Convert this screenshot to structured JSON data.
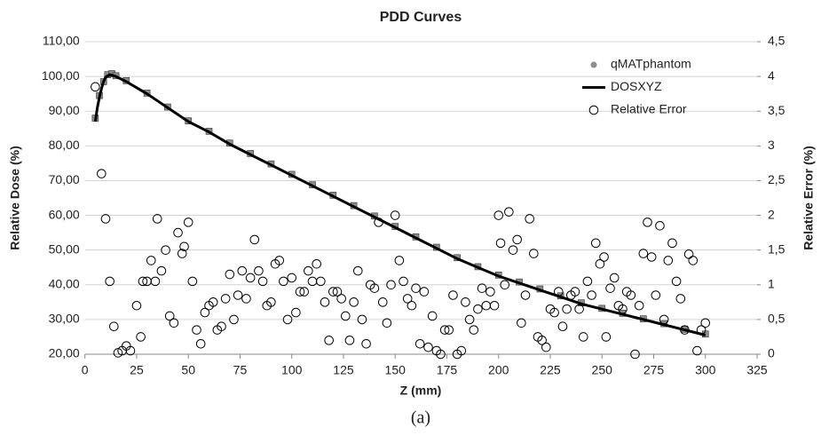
{
  "chart_data": {
    "type": "scatter",
    "title": "PDD Curves",
    "xlabel": "Z (mm)",
    "ylabel": "Relative Dose (%)",
    "y2label": "Relative Error (%)",
    "caption": "(a)",
    "xlim": [
      0,
      325
    ],
    "xticks": [
      0,
      25,
      50,
      75,
      100,
      125,
      150,
      175,
      200,
      225,
      250,
      275,
      300,
      325
    ],
    "ylim": [
      20,
      110
    ],
    "yticks": [
      {
        "value": 20,
        "label": "20,00"
      },
      {
        "value": 30,
        "label": "30,00"
      },
      {
        "value": 40,
        "label": "40,00"
      },
      {
        "value": 50,
        "label": "50,00"
      },
      {
        "value": 60,
        "label": "60,00"
      },
      {
        "value": 70,
        "label": "70,00"
      },
      {
        "value": 80,
        "label": "80,00"
      },
      {
        "value": 90,
        "label": "90,00"
      },
      {
        "value": 100,
        "label": "100,00"
      },
      {
        "value": 110,
        "label": "110,00"
      }
    ],
    "y2lim": [
      0,
      4.5
    ],
    "y2ticks": [
      0,
      {
        "value": 0.5,
        "label": "0,5"
      },
      1,
      {
        "value": 1.5,
        "label": "1,5"
      },
      2,
      {
        "value": 2.5,
        "label": "2,5"
      },
      3,
      {
        "value": 3.5,
        "label": "3,5"
      },
      4,
      {
        "value": 4.5,
        "label": "4,5"
      }
    ],
    "grid": true,
    "legend": "upper right",
    "series": [
      {
        "name": "qMATphantom",
        "type": "scatter",
        "marker": "square",
        "color": "#8c8c8c",
        "x": [
          5,
          7,
          9,
          11,
          13,
          15,
          20,
          30,
          40,
          50,
          60,
          70,
          80,
          90,
          100,
          110,
          120,
          130,
          140,
          150,
          160,
          170,
          180,
          190,
          200,
          210,
          220,
          230,
          240,
          250,
          260,
          270,
          280,
          290,
          300
        ],
        "values": [
          88,
          94.5,
          98.5,
          100.5,
          100.8,
          100.2,
          98.8,
          95.2,
          91.2,
          87.2,
          84.2,
          80.8,
          77.8,
          74.8,
          71.8,
          68.8,
          65.8,
          62.8,
          59.8,
          56.8,
          53.8,
          50.8,
          47.8,
          45.2,
          42.8,
          40.8,
          38.8,
          36.8,
          34.8,
          33.2,
          31.8,
          30.2,
          28.8,
          27.2,
          25.8
        ]
      },
      {
        "name": "DOSXYZ",
        "type": "line",
        "color": "#000000",
        "x": [
          5,
          6,
          7,
          8,
          9,
          10,
          12,
          15,
          20,
          30,
          40,
          50,
          60,
          70,
          80,
          90,
          100,
          110,
          120,
          130,
          140,
          150,
          160,
          170,
          180,
          190,
          200,
          210,
          220,
          230,
          240,
          250,
          260,
          270,
          280,
          290,
          300
        ],
        "values": [
          87,
          91,
          94,
          96.5,
          98.5,
          99.8,
          100.5,
          100,
          98.5,
          95,
          91,
          87,
          84,
          80.5,
          77.5,
          74.5,
          71.5,
          68.5,
          65.5,
          62.5,
          59.5,
          56.5,
          53.5,
          50.5,
          47.5,
          45,
          42.5,
          40.5,
          38.5,
          36.5,
          34.5,
          33,
          31.5,
          30,
          28.5,
          27,
          25.5
        ]
      },
      {
        "name": "Relative Error",
        "type": "scatter",
        "marker": "open-circle",
        "color": "#000000",
        "axis": "y2",
        "x": [
          5,
          8,
          10,
          12,
          14,
          16,
          18,
          20,
          22,
          25,
          27,
          28,
          30,
          32,
          34,
          35,
          37,
          39,
          41,
          43,
          45,
          47,
          48,
          50,
          52,
          54,
          56,
          58,
          60,
          62,
          64,
          66,
          68,
          70,
          72,
          74,
          76,
          78,
          80,
          82,
          84,
          86,
          88,
          90,
          92,
          94,
          96,
          98,
          100,
          102,
          104,
          106,
          108,
          110,
          112,
          114,
          116,
          118,
          120,
          122,
          124,
          126,
          128,
          130,
          132,
          134,
          136,
          138,
          140,
          142,
          144,
          146,
          148,
          150,
          152,
          154,
          156,
          158,
          160,
          162,
          164,
          166,
          168,
          170,
          172,
          174,
          176,
          178,
          180,
          182,
          184,
          186,
          188,
          190,
          192,
          194,
          196,
          198,
          200,
          201,
          203,
          205,
          207,
          209,
          211,
          213,
          215,
          217,
          219,
          221,
          223,
          225,
          227,
          229,
          231,
          233,
          235,
          237,
          239,
          241,
          243,
          245,
          247,
          249,
          251,
          252,
          254,
          256,
          258,
          260,
          262,
          264,
          266,
          268,
          270,
          272,
          274,
          276,
          278,
          280,
          282,
          284,
          286,
          288,
          290,
          292,
          294,
          296,
          298,
          300
        ],
        "values": [
          3.85,
          2.6,
          1.95,
          1.05,
          0.4,
          0.02,
          0.05,
          0.12,
          0.05,
          0.7,
          0.25,
          1.05,
          1.05,
          1.35,
          1.05,
          1.95,
          1.2,
          1.5,
          0.55,
          0.45,
          1.75,
          1.45,
          1.55,
          1.9,
          1.05,
          0.35,
          0.15,
          0.6,
          0.7,
          0.75,
          0.35,
          0.4,
          0.8,
          1.15,
          0.5,
          0.85,
          1.2,
          0.8,
          1.1,
          1.65,
          1.2,
          1.05,
          0.7,
          0.75,
          1.3,
          1.35,
          1.05,
          0.5,
          1.1,
          0.6,
          0.9,
          0.9,
          1.2,
          1.05,
          1.3,
          1.05,
          0.75,
          0.2,
          0.9,
          0.9,
          0.8,
          0.55,
          0.2,
          0.75,
          1.2,
          0.5,
          0.15,
          1.0,
          0.95,
          1.9,
          0.75,
          0.45,
          1.0,
          2.0,
          1.35,
          1.05,
          0.8,
          0.7,
          0.95,
          0.15,
          0.9,
          0.1,
          0.55,
          0.05,
          0.0,
          0.35,
          0.35,
          0.85,
          0.0,
          0.05,
          0.75,
          0.5,
          0.35,
          0.65,
          0.95,
          0.7,
          0.9,
          0.7,
          2.0,
          1.6,
          1.0,
          2.05,
          1.5,
          1.65,
          0.45,
          0.85,
          1.95,
          1.45,
          0.25,
          0.2,
          0.1,
          0.65,
          0.6,
          0.9,
          0.4,
          0.65,
          0.85,
          0.9,
          0.65,
          0.25,
          1.05,
          0.85,
          1.6,
          1.3,
          1.4,
          0.25,
          0.95,
          1.1,
          0.7,
          0.65,
          0.9,
          0.85,
          0.0,
          0.7,
          1.45,
          1.9,
          1.4,
          0.85,
          1.85,
          0.5,
          1.35,
          1.6,
          1.05,
          0.8,
          0.35,
          1.44,
          1.35,
          0.05,
          0.35,
          0.45
        ]
      }
    ]
  }
}
